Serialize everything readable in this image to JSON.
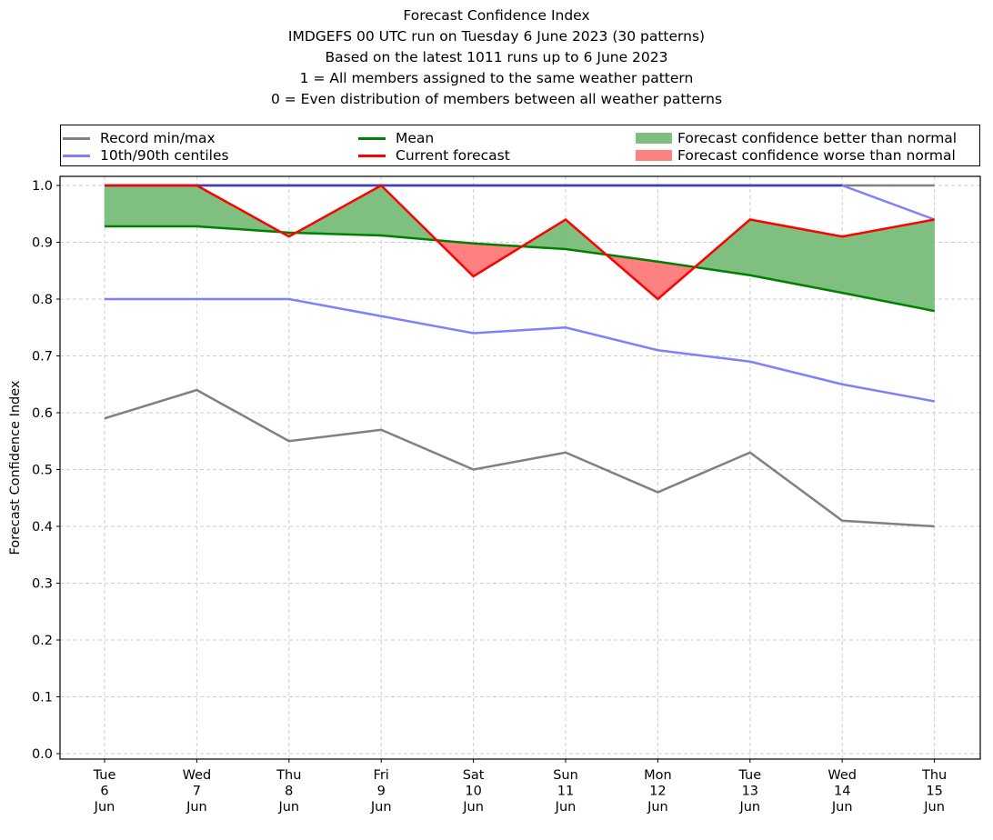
{
  "chart_data": {
    "type": "line",
    "title_lines": [
      "Forecast Confidence Index",
      "IMDGEFS 00 UTC run on Tuesday 6 June 2023 (30 patterns)",
      "Based on the latest 1011 runs up to 6 June 2023",
      "1 = All members assigned to the same weather pattern",
      "0 = Even distribution of members between all weather patterns"
    ],
    "xlabel": "",
    "ylabel": "Forecast Confidence Index",
    "ylim": [
      0.0,
      1.0
    ],
    "yticks": [
      "0.0",
      "0.1",
      "0.2",
      "0.3",
      "0.4",
      "0.5",
      "0.6",
      "0.7",
      "0.8",
      "0.9",
      "1.0"
    ],
    "ytick_values": [
      0.0,
      0.1,
      0.2,
      0.3,
      0.4,
      0.5,
      0.6,
      0.7,
      0.8,
      0.9,
      1.0
    ],
    "grid": true,
    "legend_placement": "top (above plot, 3 columns)",
    "categories": [
      [
        "Tue",
        "6",
        "Jun"
      ],
      [
        "Wed",
        "7",
        "Jun"
      ],
      [
        "Thu",
        "8",
        "Jun"
      ],
      [
        "Fri",
        "9",
        "Jun"
      ],
      [
        "Sat",
        "10",
        "Jun"
      ],
      [
        "Sun",
        "11",
        "Jun"
      ],
      [
        "Mon",
        "12",
        "Jun"
      ],
      [
        "Tue",
        "13",
        "Jun"
      ],
      [
        "Wed",
        "14",
        "Jun"
      ],
      [
        "Thu",
        "15",
        "Jun"
      ]
    ],
    "series": [
      {
        "name": "Record min",
        "legend": "Record min/max",
        "color": "#808080",
        "values": [
          0.59,
          0.64,
          0.55,
          0.57,
          0.5,
          0.53,
          0.46,
          0.53,
          0.41,
          0.4
        ]
      },
      {
        "name": "Record max",
        "legend": "Record min/max",
        "color": "#808080",
        "values": [
          1.0,
          1.0,
          1.0,
          1.0,
          1.0,
          1.0,
          1.0,
          1.0,
          1.0,
          1.0
        ]
      },
      {
        "name": "10th centile",
        "legend": "10th/90th centiles",
        "color": "#8080ff",
        "values": [
          0.8,
          0.8,
          0.8,
          0.77,
          0.74,
          0.75,
          0.71,
          0.69,
          0.65,
          0.62
        ]
      },
      {
        "name": "90th centile",
        "legend": "10th/90th centiles",
        "color": "#8080ff",
        "values": [
          1.0,
          1.0,
          1.0,
          1.0,
          1.0,
          1.0,
          1.0,
          1.0,
          1.0,
          0.94
        ]
      },
      {
        "name": "Mean",
        "legend": "Mean",
        "color": "#008000",
        "values": [
          0.928,
          0.928,
          0.917,
          0.912,
          0.898,
          0.888,
          0.866,
          0.842,
          0.811,
          0.779
        ]
      },
      {
        "name": "Current forecast",
        "legend": "Current forecast",
        "color": "#ff0000",
        "values": [
          1.0,
          1.0,
          0.91,
          1.0,
          0.84,
          0.94,
          0.8,
          0.94,
          0.91,
          0.94
        ]
      }
    ],
    "fills": [
      {
        "name": "Forecast confidence better than normal",
        "color": "#7fbf7f",
        "between": [
          "Current forecast",
          "Mean"
        ],
        "where": "current > mean"
      },
      {
        "name": "Forecast confidence worse than normal",
        "color": "#ff8080",
        "between": [
          "Current forecast",
          "Mean"
        ],
        "where": "current < mean"
      }
    ]
  },
  "legend": {
    "record": "Record min/max",
    "centiles": "10th/90th centiles",
    "mean": "Mean",
    "current": "Current forecast",
    "better": "Forecast confidence better than normal",
    "worse": "Forecast confidence worse than normal",
    "colors": {
      "record": "#808080",
      "centiles": "#8080ff",
      "mean": "#008000",
      "current": "#ff0000",
      "better": "#7fbf7f",
      "worse": "#ff8080"
    }
  }
}
